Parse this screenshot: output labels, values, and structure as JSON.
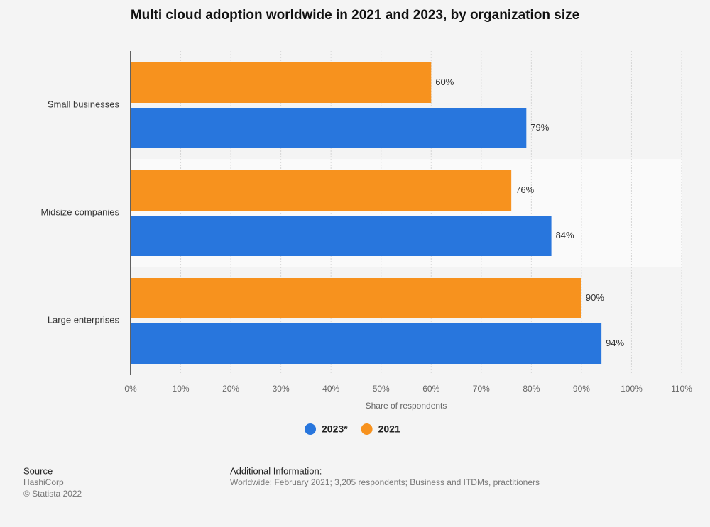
{
  "chart_data": {
    "type": "hbar",
    "title": "Multi cloud adoption worldwide in 2021 and 2023, by organization size",
    "categories": [
      "Small businesses",
      "Midsize companies",
      "Large enterprises"
    ],
    "series": [
      {
        "name": "2023*",
        "color": "#2876dd",
        "values": [
          79,
          84,
          94
        ],
        "value_labels": [
          "79%",
          "84%",
          "94%"
        ]
      },
      {
        "name": "2021",
        "color": "#f7921e",
        "values": [
          60,
          76,
          90
        ],
        "value_labels": [
          "60%",
          "76%",
          "90%"
        ]
      }
    ],
    "x_label": "Share of respondents",
    "xlim": [
      0,
      110
    ],
    "xticks": [
      {
        "value": 0,
        "label": "0%"
      },
      {
        "value": 10,
        "label": "10%"
      },
      {
        "value": 20,
        "label": "20%"
      },
      {
        "value": 30,
        "label": "30%"
      },
      {
        "value": 40,
        "label": "40%"
      },
      {
        "value": 50,
        "label": "50%"
      },
      {
        "value": 60,
        "label": "60%"
      },
      {
        "value": 70,
        "label": "70%"
      },
      {
        "value": 80,
        "label": "80%"
      },
      {
        "value": 90,
        "label": "90%"
      },
      {
        "value": 100,
        "label": "100%"
      },
      {
        "value": 110,
        "label": "110%"
      }
    ],
    "grid": true,
    "legend_position": "bottom",
    "source_heading": "Source",
    "source": "HashiCorp",
    "copyright": "© Statista 2022",
    "info_heading": "Additional Information:",
    "info": "Worldwide; February 2021; 3,205 respondents; Business and ITDMs, practitioners"
  }
}
